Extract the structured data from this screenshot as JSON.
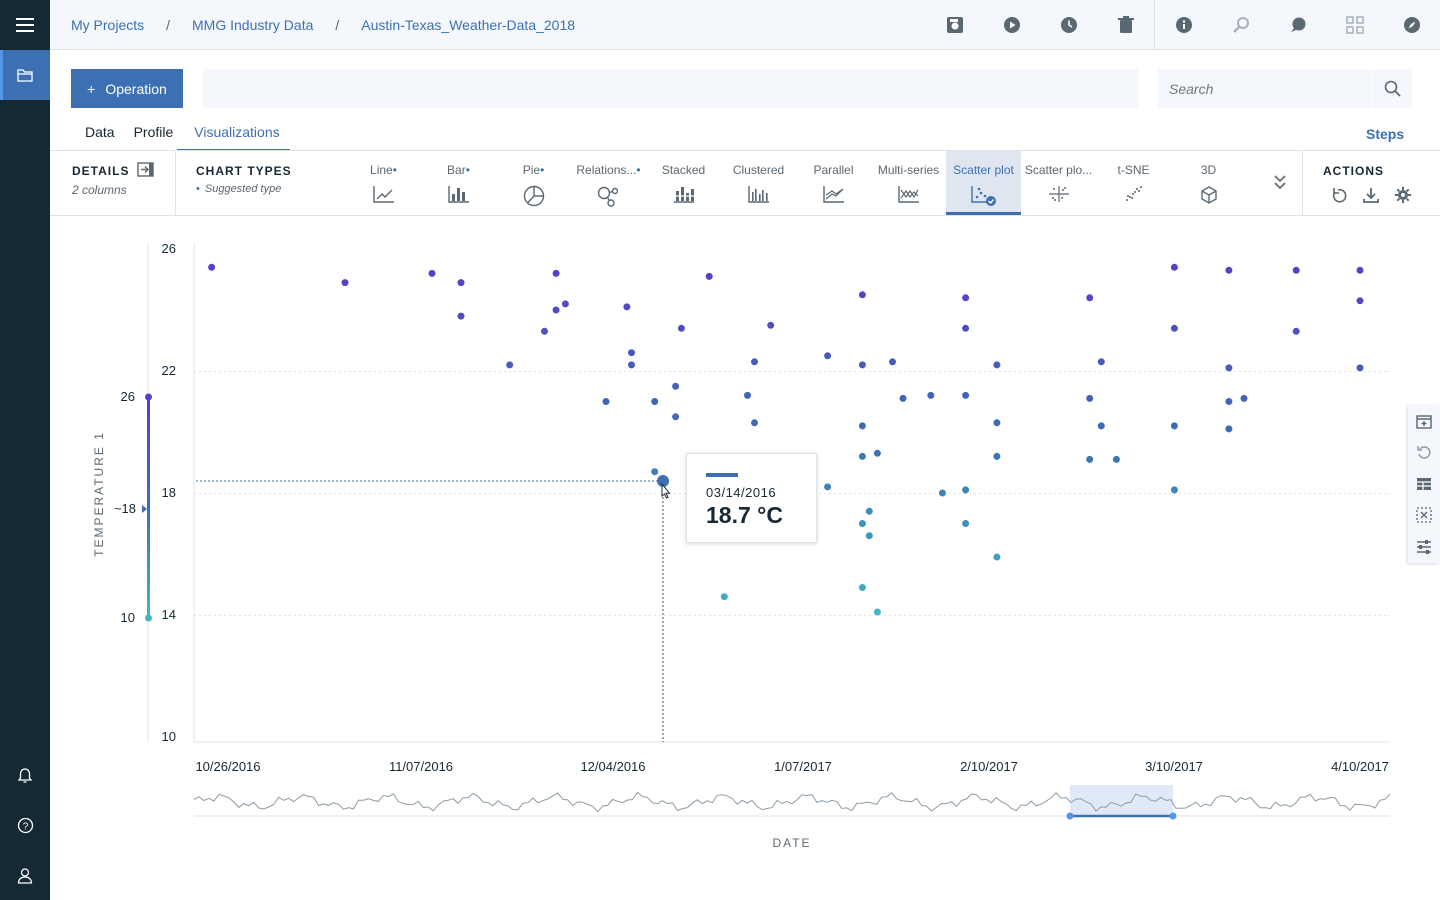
{
  "breadcrumbs": [
    "My Projects",
    "MMG Industry Data",
    "Austin-Texas_Weather-Data_2018"
  ],
  "operation_button": "Operation",
  "search_placeholder": "Search",
  "tabs": [
    "Data",
    "Profile",
    "Visualizations"
  ],
  "active_tab": "Visualizations",
  "steps_label": "Steps",
  "details": {
    "title": "DETAILS",
    "subtitle": "2 columns"
  },
  "chart_types": {
    "title": "CHART TYPES",
    "subtitle": "Suggested type",
    "items": [
      {
        "label": "Line",
        "suggested": true,
        "icon": "line-chart-icon"
      },
      {
        "label": "Bar",
        "suggested": true,
        "icon": "bar-chart-icon"
      },
      {
        "label": "Pie",
        "suggested": true,
        "icon": "pie-chart-icon"
      },
      {
        "label": "Relations...",
        "suggested": true,
        "icon": "relations-icon"
      },
      {
        "label": "Stacked",
        "suggested": false,
        "icon": "stacked-bar-icon"
      },
      {
        "label": "Clustered",
        "suggested": false,
        "icon": "clustered-bar-icon"
      },
      {
        "label": "Parallel",
        "suggested": false,
        "icon": "parallel-icon"
      },
      {
        "label": "Multi-series",
        "suggested": false,
        "icon": "multi-series-icon"
      },
      {
        "label": "Scatter plot",
        "suggested": false,
        "icon": "scatter-plot-icon"
      },
      {
        "label": "Scatter plo...",
        "suggested": false,
        "icon": "scatter-matrix-icon"
      },
      {
        "label": "t-SNE",
        "suggested": false,
        "icon": "tsne-icon"
      },
      {
        "label": "3D",
        "suggested": false,
        "icon": "cube-icon"
      }
    ],
    "active": "Scatter plot"
  },
  "actions": {
    "title": "ACTIONS"
  },
  "tooltip": {
    "date": "03/14/2016",
    "value": "18.7 °C"
  },
  "colors": {
    "accent": "#3d70b2",
    "rail": "#152935",
    "high": "#5a3ec8",
    "low": "#41b6c4"
  },
  "chart_data": {
    "type": "scatter",
    "xlabel": "DATE",
    "ylabel": "TEMPERATURE 1",
    "ylim": [
      10,
      26
    ],
    "yticks": [
      "26",
      "22",
      "18",
      "14",
      "10"
    ],
    "xticks": [
      "10/26/2016",
      "11/07/2016",
      "12/04/2016",
      "1/07/2017",
      "2/10/2017",
      "3/10/2017",
      "4/10/2017"
    ],
    "color_legend": {
      "max": "26",
      "mid": "~18",
      "min": "10"
    },
    "points": [
      [
        0.01,
        25.4
      ],
      [
        0.125,
        24.9
      ],
      [
        0.2,
        25.2
      ],
      [
        0.225,
        24.9
      ],
      [
        0.225,
        23.8
      ],
      [
        0.267,
        22.2
      ],
      [
        0.297,
        23.3
      ],
      [
        0.307,
        25.2
      ],
      [
        0.307,
        24.0
      ],
      [
        0.315,
        24.2
      ],
      [
        0.35,
        21.0
      ],
      [
        0.368,
        24.1
      ],
      [
        0.372,
        22.6
      ],
      [
        0.372,
        22.2
      ],
      [
        0.392,
        21.0
      ],
      [
        0.392,
        18.7
      ],
      [
        0.41,
        21.5
      ],
      [
        0.41,
        20.5
      ],
      [
        0.415,
        23.4
      ],
      [
        0.439,
        25.1
      ],
      [
        0.452,
        14.6
      ],
      [
        0.472,
        21.2
      ],
      [
        0.478,
        22.3
      ],
      [
        0.478,
        20.3
      ],
      [
        0.492,
        23.5
      ],
      [
        0.541,
        22.5
      ],
      [
        0.541,
        18.2
      ],
      [
        0.571,
        24.5
      ],
      [
        0.571,
        22.2
      ],
      [
        0.571,
        20.2
      ],
      [
        0.571,
        19.2
      ],
      [
        0.571,
        17.0
      ],
      [
        0.571,
        14.9
      ],
      [
        0.577,
        17.4
      ],
      [
        0.577,
        16.6
      ],
      [
        0.584,
        19.3
      ],
      [
        0.584,
        14.1
      ],
      [
        0.597,
        22.3
      ],
      [
        0.606,
        21.1
      ],
      [
        0.63,
        21.2
      ],
      [
        0.64,
        18.0
      ],
      [
        0.66,
        24.4
      ],
      [
        0.66,
        23.4
      ],
      [
        0.66,
        21.2
      ],
      [
        0.66,
        18.1
      ],
      [
        0.66,
        17.0
      ],
      [
        0.687,
        22.2
      ],
      [
        0.687,
        20.3
      ],
      [
        0.687,
        19.2
      ],
      [
        0.687,
        15.9
      ],
      [
        0.767,
        24.4
      ],
      [
        0.767,
        21.1
      ],
      [
        0.767,
        19.1
      ],
      [
        0.777,
        22.3
      ],
      [
        0.777,
        20.2
      ],
      [
        0.79,
        19.1
      ],
      [
        0.84,
        25.4
      ],
      [
        0.84,
        23.4
      ],
      [
        0.84,
        20.2
      ],
      [
        0.84,
        18.1
      ],
      [
        0.887,
        25.3
      ],
      [
        0.887,
        22.1
      ],
      [
        0.887,
        21.0
      ],
      [
        0.887,
        20.1
      ],
      [
        0.9,
        21.1
      ],
      [
        0.945,
        25.3
      ],
      [
        0.945,
        23.3
      ],
      [
        1.0,
        25.3
      ],
      [
        1.0,
        24.3
      ],
      [
        1.0,
        22.1
      ]
    ]
  }
}
